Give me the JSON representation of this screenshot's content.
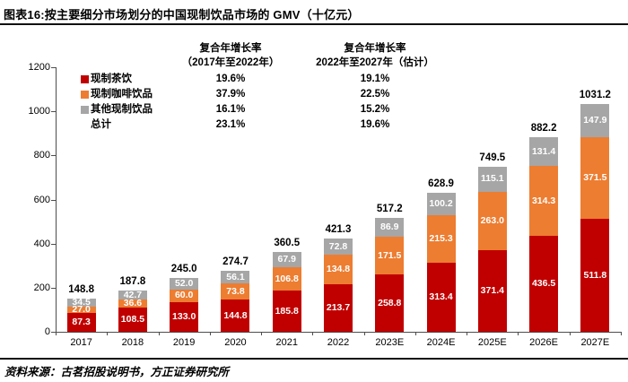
{
  "header": {
    "title": "图表16:按主要细分市场划分的中国现制饮品市场的 GMV（十亿元）"
  },
  "footer": {
    "source": "资料来源：古茗招股说明书，方正证券研究所"
  },
  "legend": {
    "col1": {
      "line1": "复合年增长率",
      "line2": "（2017年至2022年）"
    },
    "col2": {
      "line1": "复合年增长率",
      "line2": "2022年至2027年（估计）"
    },
    "rows": [
      {
        "label": "现制茶饮",
        "cagr_2017_2022": "19.6%",
        "cagr_2022_2027": "19.1%"
      },
      {
        "label": "现制咖啡饮品",
        "cagr_2017_2022": "37.9%",
        "cagr_2022_2027": "22.5%"
      },
      {
        "label": "其他现制饮品",
        "cagr_2017_2022": "16.1%",
        "cagr_2022_2027": "15.2%"
      },
      {
        "label": "总计",
        "cagr_2017_2022": "23.1%",
        "cagr_2022_2027": "19.6%"
      }
    ]
  },
  "colors": {
    "tea_red": "#C00000",
    "coffee_orange": "#ED7D31",
    "other_gray": "#A6A6A6",
    "axis": "#4d4d4d"
  },
  "chart_data": {
    "type": "bar",
    "stacked": true,
    "title": "按主要细分市场划分的中国现制饮品市场的 GMV（十亿元）",
    "xlabel": "",
    "ylabel": "",
    "ylim": [
      0,
      1200
    ],
    "yticks": [
      0,
      200,
      400,
      600,
      800,
      1000,
      1200
    ],
    "grid": false,
    "legend_position": "top-left",
    "categories": [
      "2017",
      "2018",
      "2019",
      "2020",
      "2021",
      "2022",
      "2023E",
      "2024E",
      "2025E",
      "2026E",
      "2027E"
    ],
    "series": [
      {
        "name": "现制茶饮",
        "color": "#C00000",
        "values": [
          87.3,
          108.5,
          133.0,
          144.8,
          185.8,
          213.7,
          258.8,
          313.4,
          371.4,
          436.5,
          511.8
        ]
      },
      {
        "name": "现制咖啡饮品",
        "color": "#ED7D31",
        "values": [
          27.0,
          36.6,
          60.0,
          73.8,
          106.8,
          134.8,
          171.5,
          215.3,
          263.0,
          314.3,
          371.5
        ]
      },
      {
        "name": "其他现制饮品",
        "color": "#A6A6A6",
        "values": [
          34.5,
          42.7,
          52.0,
          56.1,
          67.9,
          72.8,
          86.9,
          100.2,
          115.1,
          131.4,
          147.9
        ]
      }
    ],
    "totals": [
      148.8,
      187.8,
      245.0,
      274.7,
      360.5,
      421.3,
      517.2,
      628.9,
      749.5,
      882.2,
      1031.2
    ]
  }
}
